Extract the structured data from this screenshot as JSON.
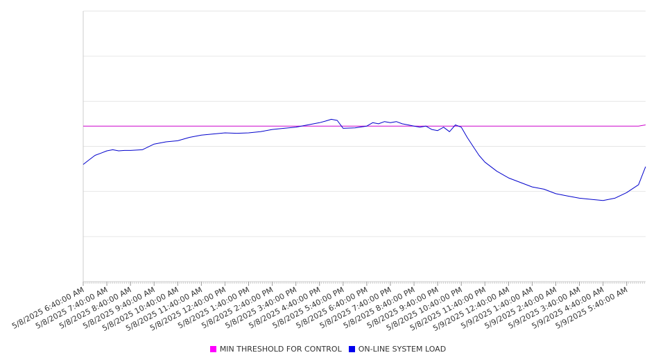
{
  "chart_data": {
    "type": "line",
    "x_labels": [
      "5/8/2025 6:40:00 AM",
      "5/8/2025 7:40:00 AM",
      "5/8/2025 8:40:00 AM",
      "5/8/2025 9:40:00 AM",
      "5/8/2025 10:40:00 AM",
      "5/8/2025 11:40:00 AM",
      "5/8/2025 12:40:00 PM",
      "5/8/2025 1:40:00 PM",
      "5/8/2025 2:40:00 PM",
      "5/8/2025 3:40:00 PM",
      "5/8/2025 4:40:00 PM",
      "5/8/2025 5:40:00 PM",
      "5/8/2025 6:40:00 PM",
      "5/8/2025 7:40:00 PM",
      "5/8/2025 8:40:00 PM",
      "5/8/2025 9:40:00 PM",
      "5/8/2025 10:40:00 PM",
      "5/8/2025 11:40:00 PM",
      "5/9/2025 12:40:00 AM",
      "5/9/2025 1:40:00 AM",
      "5/9/2025 2:40:00 AM",
      "5/9/2025 3:40:00 AM",
      "5/9/2025 4:40:00 AM",
      "5/9/2025 5:40:00 AM"
    ],
    "x": [
      0,
      0.25,
      0.5,
      0.75,
      1,
      1.25,
      1.5,
      1.75,
      2,
      2.5,
      3,
      3.5,
      4,
      4.5,
      5,
      5.5,
      6,
      6.5,
      7,
      7.5,
      8,
      8.5,
      9,
      9.5,
      10,
      10.25,
      10.5,
      10.75,
      11,
      11.5,
      12,
      12.25,
      12.5,
      12.75,
      13,
      13.25,
      13.5,
      13.75,
      14,
      14.25,
      14.5,
      14.75,
      15,
      15.25,
      15.5,
      15.75,
      16,
      16.25,
      16.5,
      16.75,
      17,
      17.5,
      18,
      18.5,
      19,
      19.5,
      20,
      20.5,
      21,
      21.5,
      22,
      22.5,
      23,
      23.5,
      23.8
    ],
    "series": [
      {
        "name": "MIN THRESHOLD FOR CONTROL",
        "color": "#cc00cc",
        "values": [
          6.9,
          6.9,
          6.9,
          6.9,
          6.9,
          6.9,
          6.9,
          6.9,
          6.9,
          6.9,
          6.9,
          6.9,
          6.9,
          6.9,
          6.9,
          6.9,
          6.9,
          6.9,
          6.9,
          6.9,
          6.9,
          6.9,
          6.9,
          6.9,
          6.9,
          6.9,
          6.9,
          6.9,
          6.9,
          6.9,
          6.9,
          6.9,
          6.9,
          6.9,
          6.9,
          6.9,
          6.9,
          6.9,
          6.9,
          6.9,
          6.9,
          6.9,
          6.9,
          6.9,
          6.9,
          6.9,
          6.9,
          6.9,
          6.9,
          6.9,
          6.9,
          6.9,
          6.9,
          6.9,
          6.9,
          6.9,
          6.9,
          6.9,
          6.9,
          6.9,
          6.9,
          6.9,
          6.9,
          6.9,
          6.95
        ]
      },
      {
        "name": "ON-LINE SYSTEM LOAD",
        "color": "#0000cc",
        "values": [
          5.2,
          5.4,
          5.6,
          5.7,
          5.8,
          5.85,
          5.8,
          5.82,
          5.82,
          5.85,
          6.1,
          6.2,
          6.25,
          6.4,
          6.5,
          6.55,
          6.6,
          6.58,
          6.6,
          6.65,
          6.75,
          6.8,
          6.85,
          6.95,
          7.05,
          7.12,
          7.2,
          7.15,
          6.8,
          6.82,
          6.9,
          7.05,
          7.0,
          7.1,
          7.05,
          7.1,
          7.0,
          6.95,
          6.9,
          6.85,
          6.9,
          6.75,
          6.7,
          6.85,
          6.65,
          6.95,
          6.85,
          6.4,
          6.0,
          5.6,
          5.3,
          4.9,
          4.6,
          4.4,
          4.2,
          4.1,
          3.9,
          3.8,
          3.7,
          3.65,
          3.6,
          3.7,
          3.95,
          4.3,
          5.1
        ]
      }
    ],
    "ylim": [
      0,
      12
    ],
    "grid": true,
    "legend_position": "bottom"
  }
}
